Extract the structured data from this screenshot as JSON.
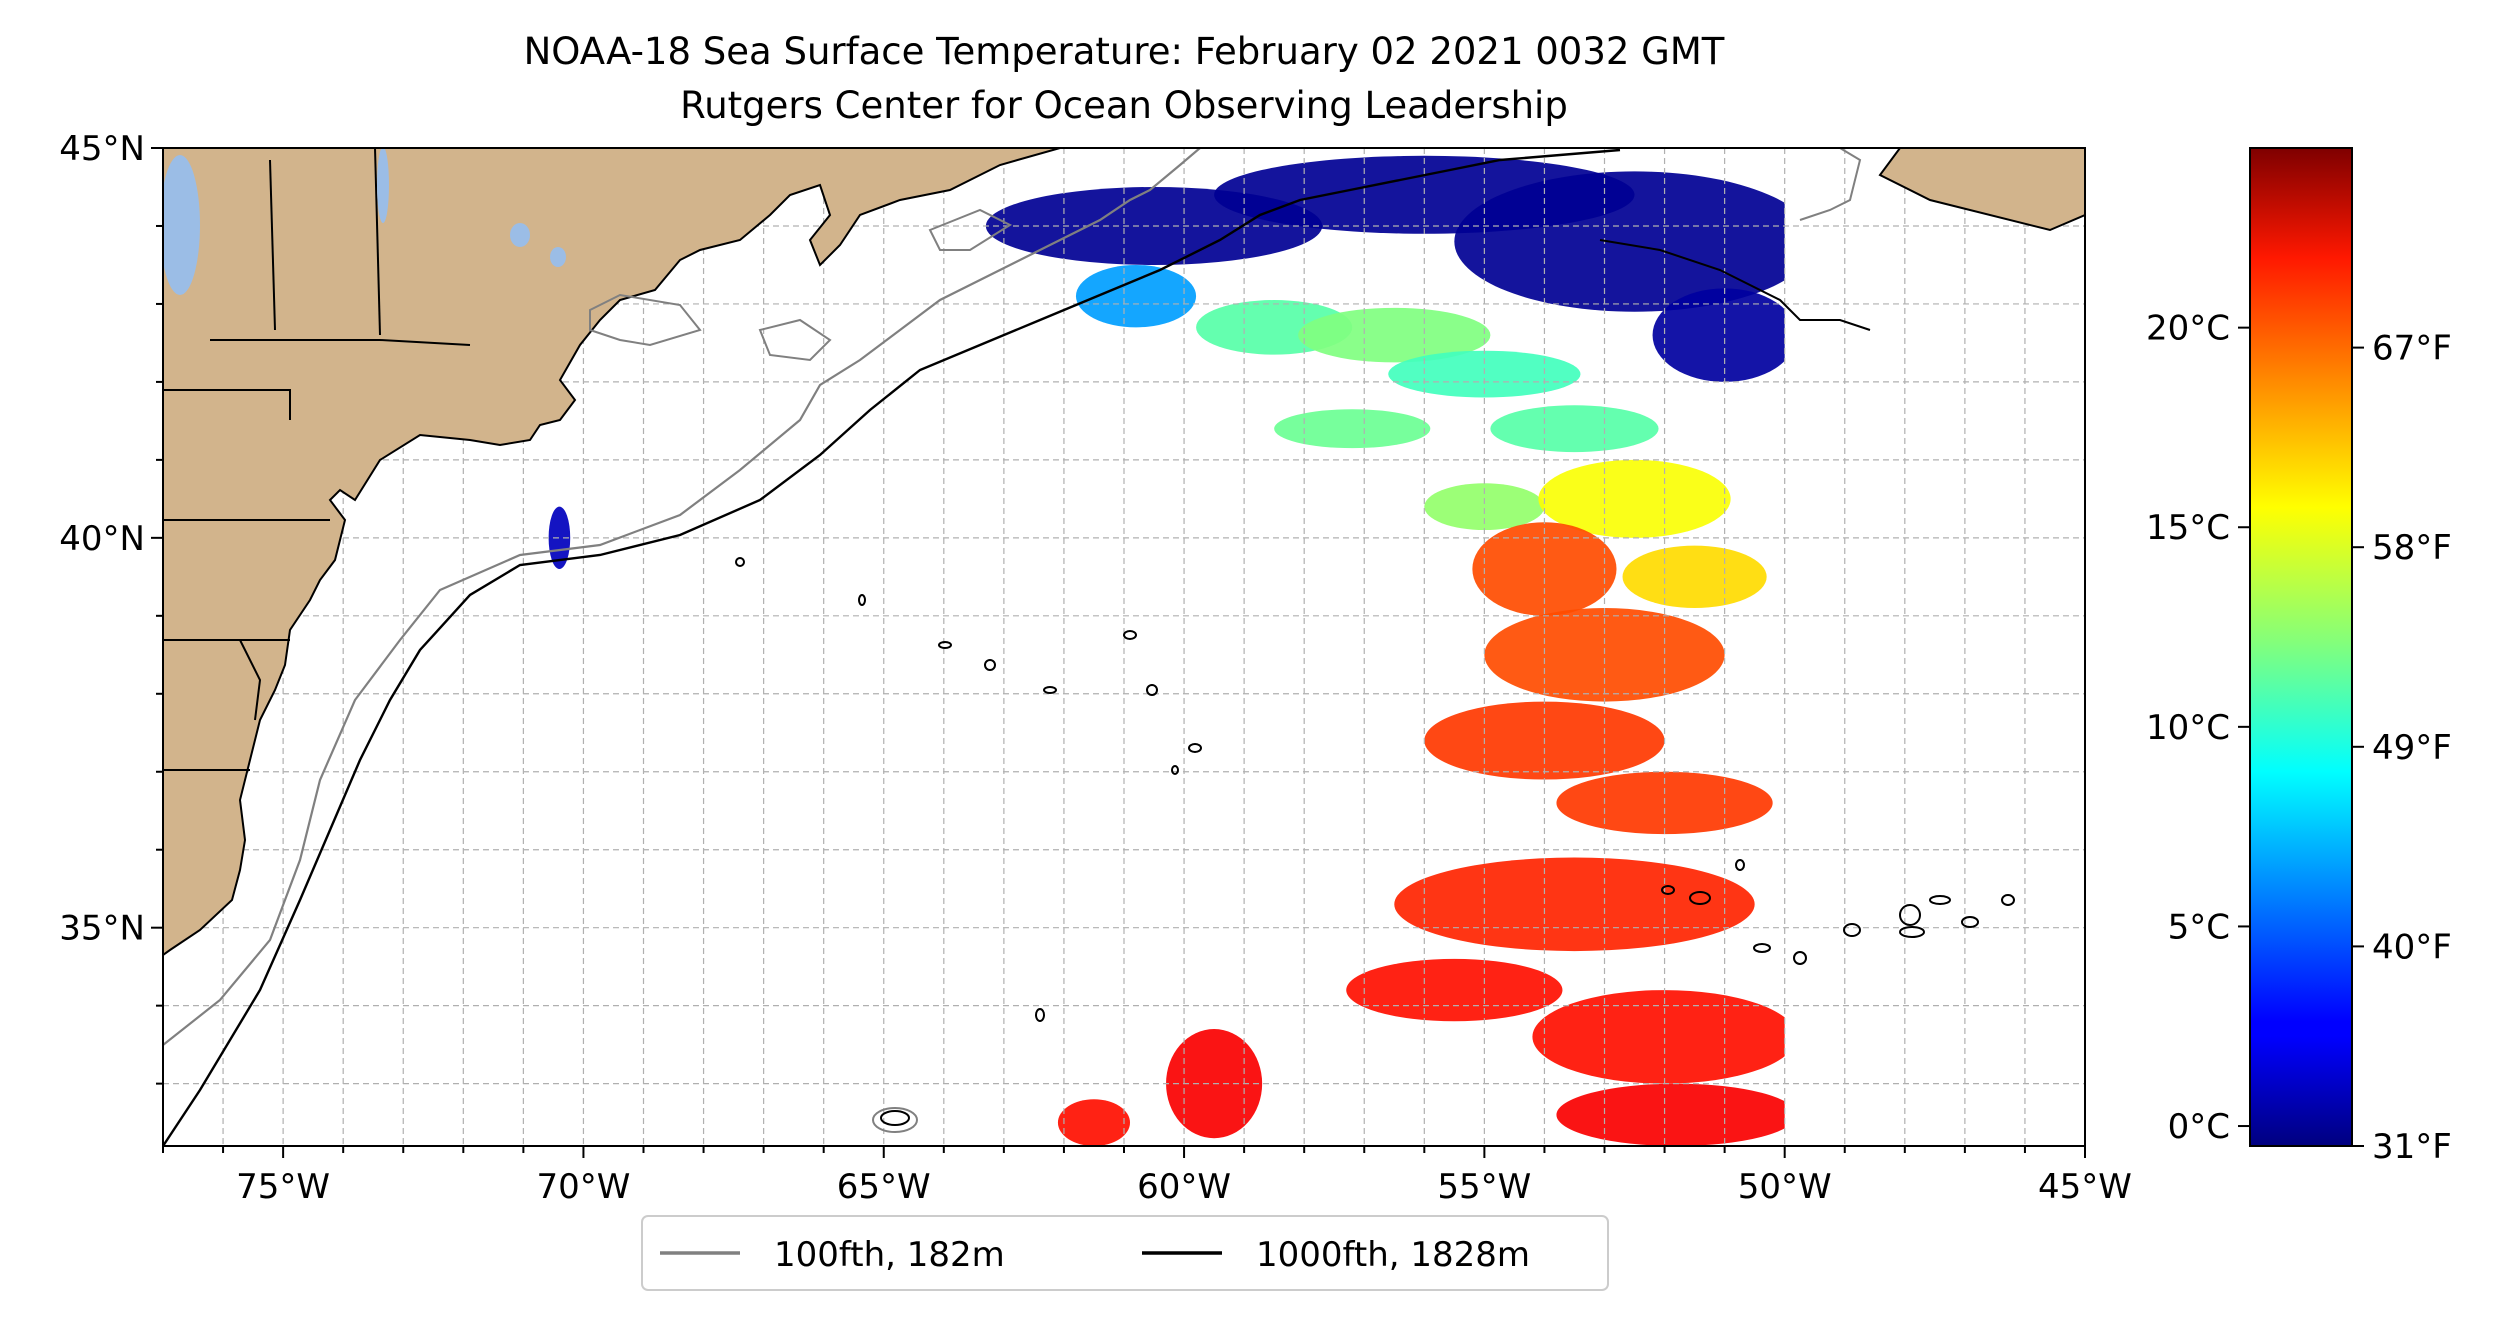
{
  "title": {
    "line1": "NOAA-18 Sea Surface Temperature: February 02 2021 0032 GMT",
    "line2": "Rutgers Center for Ocean Observing Leadership"
  },
  "map": {
    "lon_range": [
      -77,
      -45
    ],
    "lat_range": [
      32.2,
      45
    ],
    "lon_ticks": [
      {
        "value": -75,
        "label": "75°W"
      },
      {
        "value": -70,
        "label": "70°W"
      },
      {
        "value": -65,
        "label": "65°W"
      },
      {
        "value": -60,
        "label": "60°W"
      },
      {
        "value": -55,
        "label": "55°W"
      },
      {
        "value": -50,
        "label": "50°W"
      },
      {
        "value": -45,
        "label": "45°W"
      }
    ],
    "lat_ticks": [
      {
        "value": 45,
        "label": "45°N"
      },
      {
        "value": 40,
        "label": "40°N"
      },
      {
        "value": 35,
        "label": "35°N"
      }
    ],
    "grid": true,
    "land_color": "#d2b48c",
    "lake_color": "#9bbde6",
    "swath_east_lon": -50
  },
  "legend": {
    "items": [
      {
        "label": "100fth, 182m",
        "color": "#808080"
      },
      {
        "label": "1000fth, 1828m",
        "color": "#000000"
      }
    ]
  },
  "colorbar": {
    "vmin_c": -0.5,
    "vmax_c": 24.5,
    "colormap": "jet",
    "celsius_ticks": [
      {
        "value": 0,
        "label": "0°C"
      },
      {
        "value": 5,
        "label": "5°C"
      },
      {
        "value": 10,
        "label": "10°C"
      },
      {
        "value": 15,
        "label": "15°C"
      },
      {
        "value": 20,
        "label": "20°C"
      }
    ],
    "fahrenheit_ticks": [
      {
        "value_c": -0.5,
        "label": "31°F"
      },
      {
        "value_c": 4.5,
        "label": "40°F"
      },
      {
        "value_c": 9.5,
        "label": "49°F"
      },
      {
        "value_c": 14.5,
        "label": "58°F"
      },
      {
        "value_c": 19.5,
        "label": "67°F"
      }
    ]
  },
  "sst_patches": [
    {
      "lon": -60.5,
      "lat": 44.0,
      "rx": 2.8,
      "ry": 0.5,
      "temp_c": 0.0
    },
    {
      "lon": -56.0,
      "lat": 44.4,
      "rx": 3.5,
      "ry": 0.5,
      "temp_c": 0.0
    },
    {
      "lon": -52.5,
      "lat": 43.8,
      "rx": 3.0,
      "ry": 0.9,
      "temp_c": 0.0
    },
    {
      "lon": -51.0,
      "lat": 42.6,
      "rx": 1.2,
      "ry": 0.6,
      "temp_c": 0.3
    },
    {
      "lon": -60.8,
      "lat": 43.1,
      "rx": 1.0,
      "ry": 0.4,
      "temp_c": 6.5
    },
    {
      "lon": -58.5,
      "lat": 42.7,
      "rx": 1.3,
      "ry": 0.35,
      "temp_c": 11.0
    },
    {
      "lon": -56.5,
      "lat": 42.6,
      "rx": 1.6,
      "ry": 0.35,
      "temp_c": 12.0
    },
    {
      "lon": -55.0,
      "lat": 42.1,
      "rx": 1.6,
      "ry": 0.3,
      "temp_c": 10.5
    },
    {
      "lon": -57.2,
      "lat": 41.4,
      "rx": 1.3,
      "ry": 0.25,
      "temp_c": 11.5
    },
    {
      "lon": -53.5,
      "lat": 41.4,
      "rx": 1.4,
      "ry": 0.3,
      "temp_c": 11.0
    },
    {
      "lon": -55.0,
      "lat": 40.4,
      "rx": 1.0,
      "ry": 0.3,
      "temp_c": 12.5
    },
    {
      "lon": -52.5,
      "lat": 40.5,
      "rx": 1.6,
      "ry": 0.5,
      "temp_c": 15.0
    },
    {
      "lon": -51.5,
      "lat": 39.5,
      "rx": 1.2,
      "ry": 0.4,
      "temp_c": 16.0
    },
    {
      "lon": -54.0,
      "lat": 39.6,
      "rx": 1.2,
      "ry": 0.6,
      "temp_c": 19.5
    },
    {
      "lon": -53.0,
      "lat": 38.5,
      "rx": 2.0,
      "ry": 0.6,
      "temp_c": 19.5
    },
    {
      "lon": -54.0,
      "lat": 37.4,
      "rx": 2.0,
      "ry": 0.5,
      "temp_c": 20.0
    },
    {
      "lon": -52.0,
      "lat": 36.6,
      "rx": 1.8,
      "ry": 0.4,
      "temp_c": 20.0
    },
    {
      "lon": -53.5,
      "lat": 35.3,
      "rx": 3.0,
      "ry": 0.6,
      "temp_c": 20.5
    },
    {
      "lon": -55.5,
      "lat": 34.2,
      "rx": 1.8,
      "ry": 0.4,
      "temp_c": 21.0
    },
    {
      "lon": -52.0,
      "lat": 33.6,
      "rx": 2.2,
      "ry": 0.6,
      "temp_c": 21.0
    },
    {
      "lon": -51.8,
      "lat": 32.6,
      "rx": 2.0,
      "ry": 0.4,
      "temp_c": 21.5
    },
    {
      "lon": -59.5,
      "lat": 33.0,
      "rx": 0.8,
      "ry": 0.7,
      "temp_c": 21.5
    },
    {
      "lon": -61.5,
      "lat": 32.5,
      "rx": 0.6,
      "ry": 0.3,
      "temp_c": 21.0
    },
    {
      "lon": -70.4,
      "lat": 40.0,
      "rx": 0.18,
      "ry": 0.4,
      "temp_c": 1.0
    }
  ]
}
